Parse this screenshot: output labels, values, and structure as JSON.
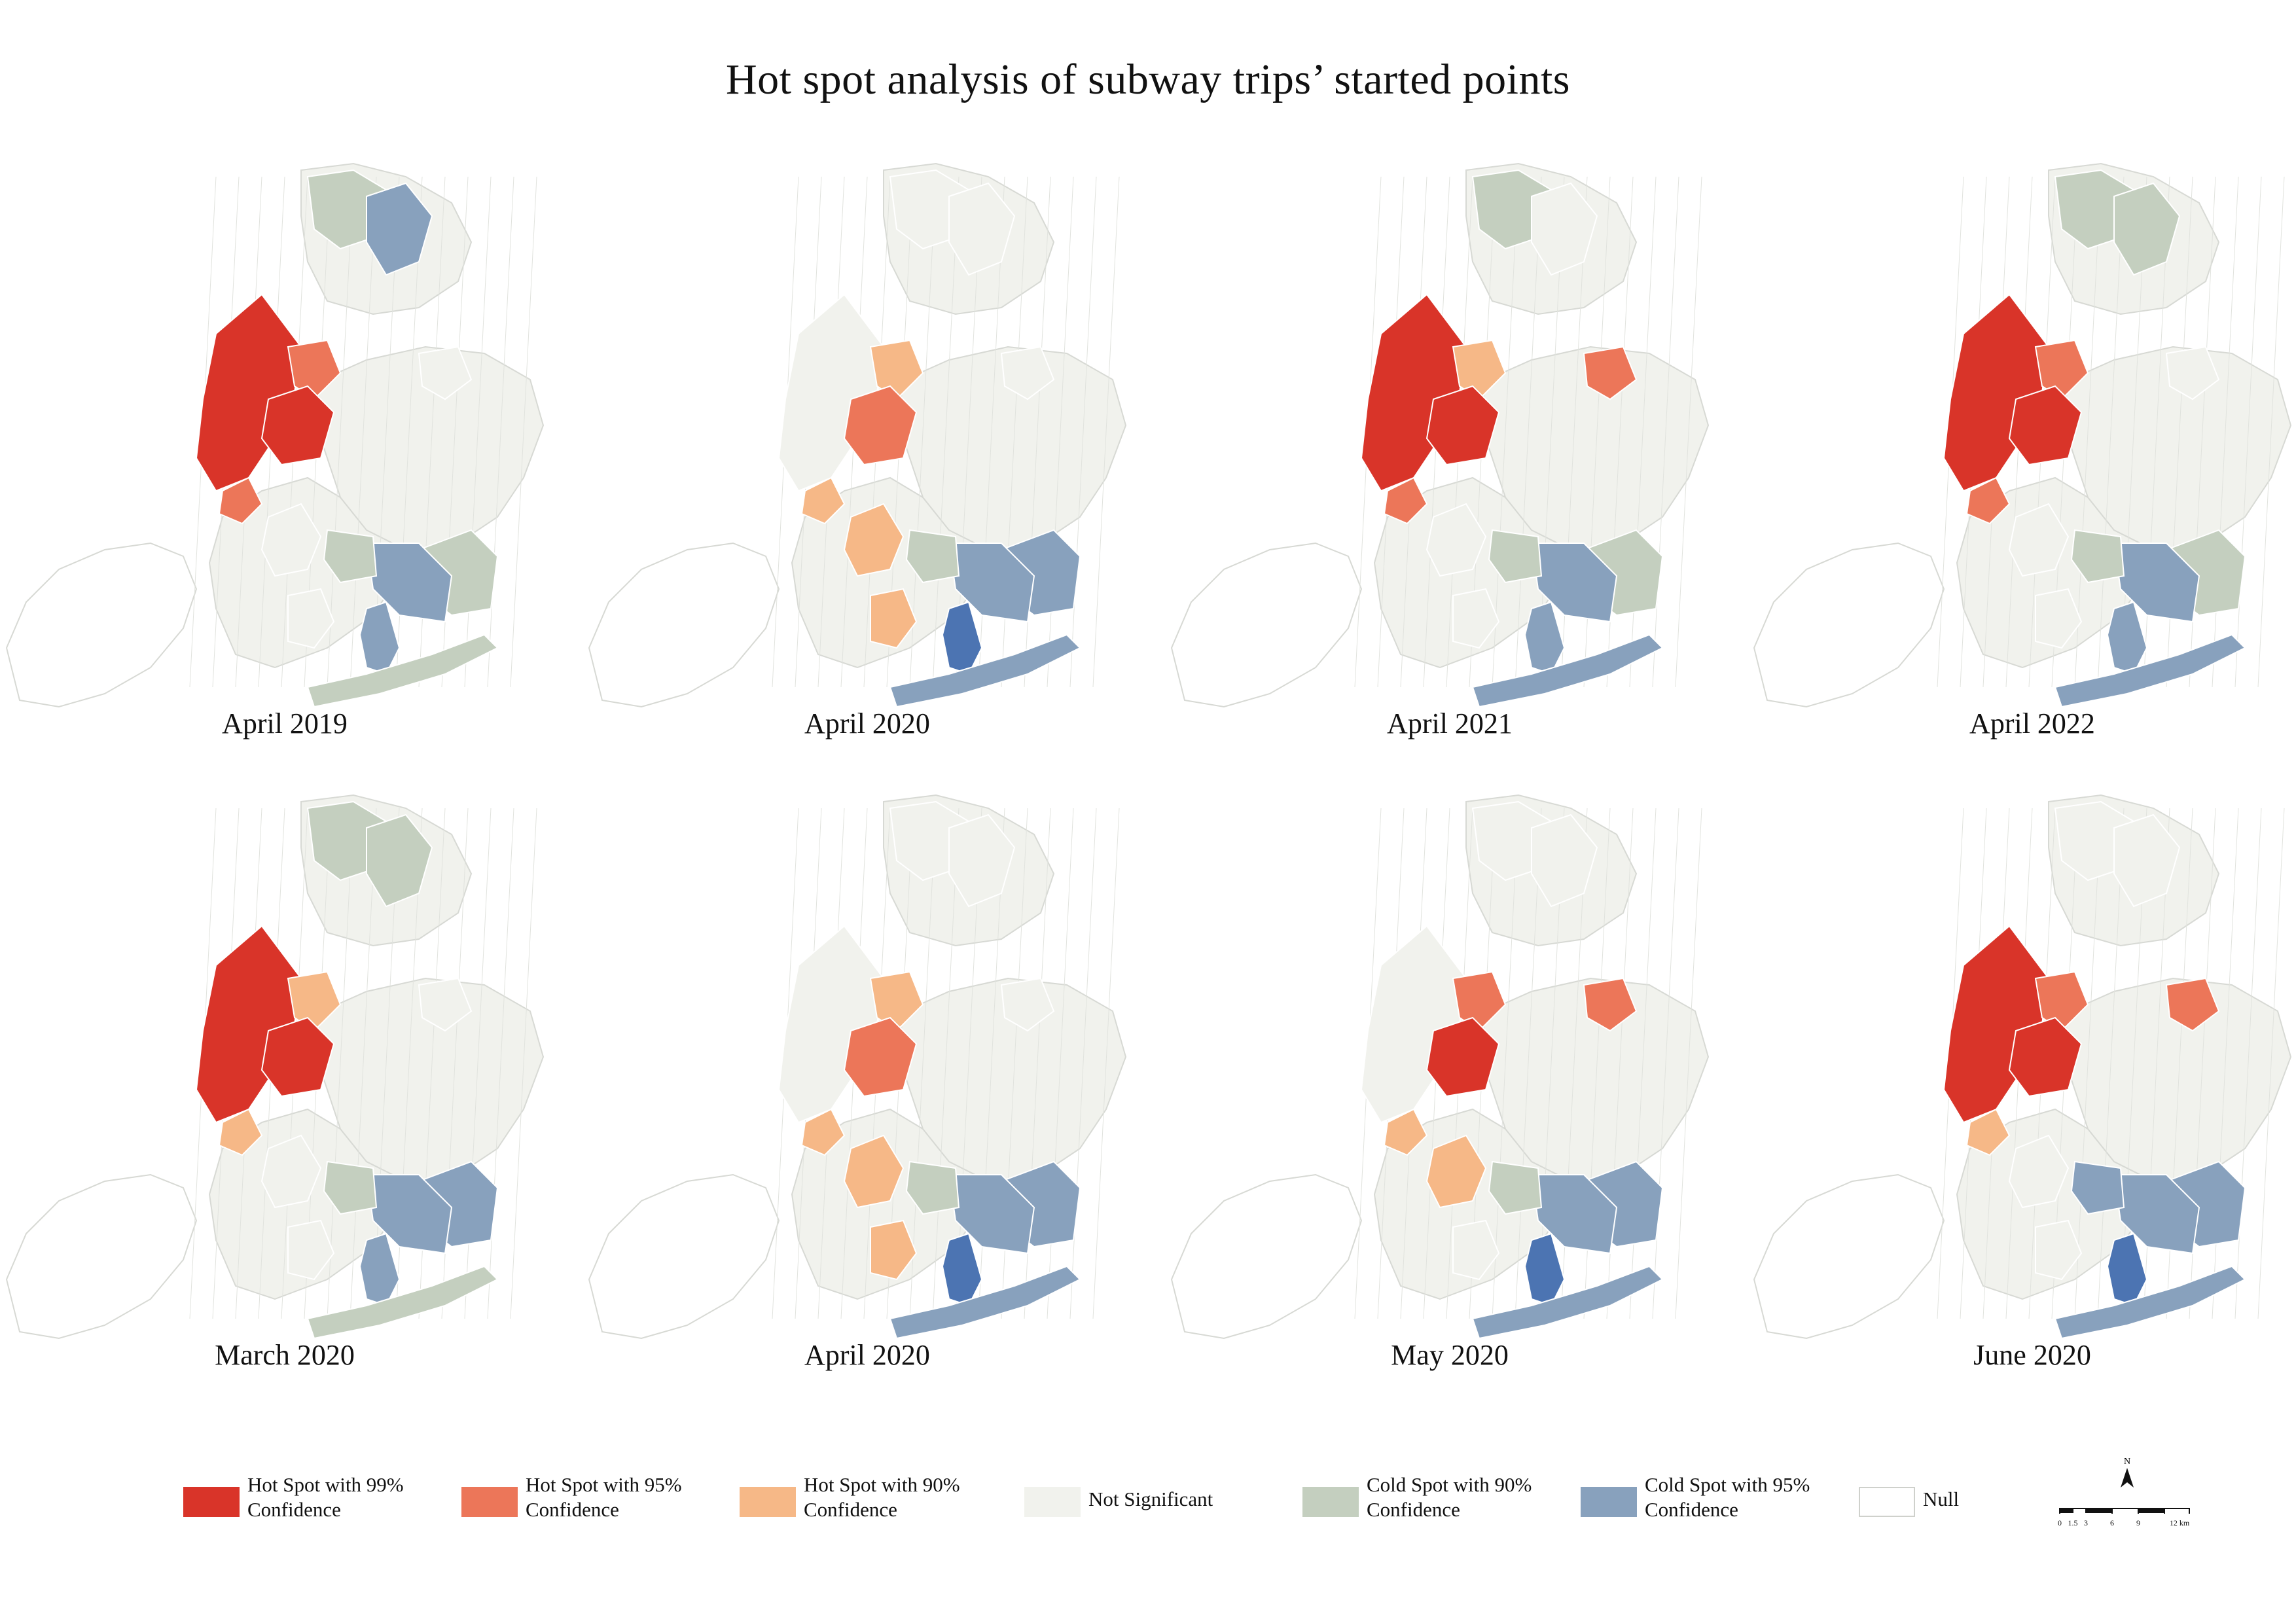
{
  "title": "Hot spot analysis of subway trips’ started points",
  "colors": {
    "hot99": "#d93429",
    "hot95": "#ec7659",
    "hot90": "#f6b887",
    "not_sig": "#f1f2ed",
    "cold90": "#c4cfbf",
    "cold95": "#88a1bd",
    "cold99": "#4c74b2",
    "null": "#ffffff",
    "boundary": "#d7d9d4"
  },
  "legend": [
    {
      "class": "hot99",
      "label": "Hot Spot with 99%\nConfidence"
    },
    {
      "class": "hot95",
      "label": "Hot Spot with 95%\nConfidence"
    },
    {
      "class": "hot90",
      "label": "Hot Spot with 90%\nConfidence"
    },
    {
      "class": "not_sig",
      "label": "Not Significant"
    },
    {
      "class": "cold90",
      "label": "Cold Spot with 90%\nConfidence"
    },
    {
      "class": "cold95",
      "label": "Cold Spot with 95%\nConfidence"
    },
    {
      "class": "null",
      "label": "Null"
    }
  ],
  "north_arrow": "N",
  "scale_labels": [
    "0",
    "1.5",
    "3",
    "6",
    "9",
    "12 km"
  ],
  "panels": [
    {
      "label": "April 2019",
      "manhattan": "hot99",
      "brooklyn_north": "hot99",
      "lic": "hot95",
      "downtown_bk": "hot95",
      "flushing": "not_sig",
      "bronx_north": "cold90",
      "bronx_east": "cold95",
      "jfk": "cold95",
      "jfk_west": "cold90",
      "southeast_queens": "cold90",
      "jamaica_bay": "cold95",
      "rockaway": "cold90",
      "central_bk": "not_sig",
      "south_bk": "not_sig"
    },
    {
      "label": "April 2020",
      "manhattan": "not_sig",
      "brooklyn_north": "hot95",
      "lic": "hot90",
      "downtown_bk": "hot90",
      "flushing": "not_sig",
      "bronx_north": "not_sig",
      "bronx_east": "not_sig",
      "jfk": "cold95",
      "jfk_west": "cold90",
      "southeast_queens": "cold95",
      "jamaica_bay": "cold99",
      "rockaway": "cold95",
      "central_bk": "hot90",
      "south_bk": "hot90"
    },
    {
      "label": "April 2021",
      "manhattan": "hot99",
      "brooklyn_north": "hot99",
      "lic": "hot90",
      "downtown_bk": "hot95",
      "flushing": "hot95",
      "bronx_north": "cold90",
      "bronx_east": "not_sig",
      "jfk": "cold95",
      "jfk_west": "cold90",
      "southeast_queens": "cold90",
      "jamaica_bay": "cold95",
      "rockaway": "cold95",
      "central_bk": "not_sig",
      "south_bk": "not_sig"
    },
    {
      "label": "April 2022",
      "manhattan": "hot99",
      "brooklyn_north": "hot99",
      "lic": "hot95",
      "downtown_bk": "hot95",
      "flushing": "not_sig",
      "bronx_north": "cold90",
      "bronx_east": "cold90",
      "jfk": "cold95",
      "jfk_west": "cold90",
      "southeast_queens": "cold90",
      "jamaica_bay": "cold95",
      "rockaway": "cold95",
      "central_bk": "not_sig",
      "south_bk": "not_sig"
    },
    {
      "label": "March 2020",
      "manhattan": "hot99",
      "brooklyn_north": "hot99",
      "lic": "hot90",
      "downtown_bk": "hot90",
      "flushing": "not_sig",
      "bronx_north": "cold90",
      "bronx_east": "cold90",
      "jfk": "cold95",
      "jfk_west": "cold90",
      "southeast_queens": "cold95",
      "jamaica_bay": "cold95",
      "rockaway": "cold90",
      "central_bk": "not_sig",
      "south_bk": "not_sig"
    },
    {
      "label": "April 2020",
      "manhattan": "not_sig",
      "brooklyn_north": "hot95",
      "lic": "hot90",
      "downtown_bk": "hot90",
      "flushing": "not_sig",
      "bronx_north": "not_sig",
      "bronx_east": "not_sig",
      "jfk": "cold95",
      "jfk_west": "cold90",
      "southeast_queens": "cold95",
      "jamaica_bay": "cold99",
      "rockaway": "cold95",
      "central_bk": "hot90",
      "south_bk": "hot90"
    },
    {
      "label": "May 2020",
      "manhattan": "not_sig",
      "brooklyn_north": "hot99",
      "lic": "hot95",
      "downtown_bk": "hot90",
      "flushing": "hot95",
      "bronx_north": "not_sig",
      "bronx_east": "not_sig",
      "jfk": "cold95",
      "jfk_west": "cold90",
      "southeast_queens": "cold95",
      "jamaica_bay": "cold99",
      "rockaway": "cold95",
      "central_bk": "hot90",
      "south_bk": "not_sig"
    },
    {
      "label": "June 2020",
      "manhattan": "hot99",
      "brooklyn_north": "hot99",
      "lic": "hot95",
      "downtown_bk": "hot90",
      "flushing": "hot95",
      "bronx_north": "not_sig",
      "bronx_east": "not_sig",
      "jfk": "cold95",
      "jfk_west": "cold95",
      "southeast_queens": "cold95",
      "jamaica_bay": "cold99",
      "rockaway": "cold95",
      "central_bk": "not_sig",
      "south_bk": "not_sig"
    }
  ]
}
